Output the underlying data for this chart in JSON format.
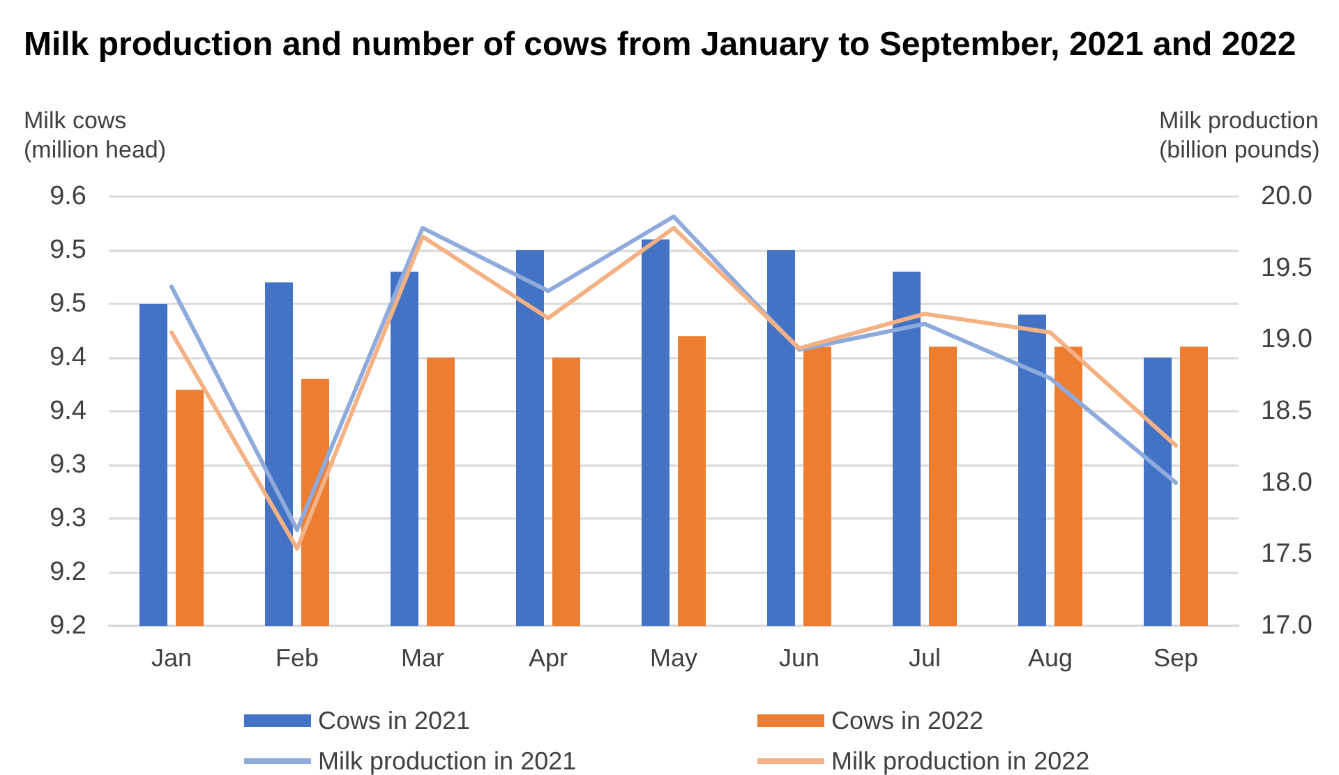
{
  "chart_data": {
    "type": "bar",
    "title": "Milk production and number of cows from January to September, 2021 and 2022",
    "ylabel": "Milk cows\n(million head)",
    "y2label": "Milk production\n(billion pounds)",
    "categories": [
      "Jan",
      "Feb",
      "Mar",
      "Apr",
      "May",
      "Jun",
      "Jul",
      "Aug",
      "Sep"
    ],
    "series": [
      {
        "name": "Cows in 2021",
        "color": "#4472c4",
        "values": [
          9.5,
          9.52,
          9.53,
          9.55,
          9.56,
          9.55,
          9.53,
          9.49,
          9.45
        ]
      },
      {
        "name": "Cows in 2022",
        "color": "#ed7d31",
        "values": [
          9.42,
          9.43,
          9.45,
          9.45,
          9.47,
          9.46,
          9.46,
          9.46,
          9.46
        ]
      },
      {
        "name": "Milk production in 2021",
        "type": "line",
        "axis": "y2",
        "color": "#8faadc",
        "values": [
          19.37,
          17.67,
          19.78,
          19.34,
          19.86,
          18.93,
          19.11,
          18.73,
          18.0
        ]
      },
      {
        "name": "Milk production in 2022",
        "type": "line",
        "axis": "y2",
        "color": "#f4b183",
        "values": [
          19.05,
          17.54,
          19.72,
          19.15,
          19.78,
          18.94,
          19.18,
          19.05,
          18.26
        ]
      }
    ],
    "ylim": [
      9.2,
      9.6
    ],
    "yticks": [
      9.2,
      {
        "value": 9.25,
        "label": "9.2"
      },
      9.3,
      {
        "value": 9.35,
        "label": "9.3"
      },
      9.4,
      {
        "value": 9.45,
        "label": "9.4"
      },
      9.5,
      {
        "value": 9.55,
        "label": "9.5"
      },
      9.6
    ],
    "y2lim": [
      17,
      20
    ],
    "y2ticks": [
      {
        "value": 17,
        "label": "17.0"
      },
      17.5,
      {
        "value": 18,
        "label": "18.0"
      },
      18.5,
      {
        "value": 19,
        "label": "19.0"
      },
      19.5,
      {
        "value": 20,
        "label": "20.0"
      }
    ],
    "grid": "y",
    "legend": "bottom",
    "marker": "none",
    "line_style": "solid"
  }
}
